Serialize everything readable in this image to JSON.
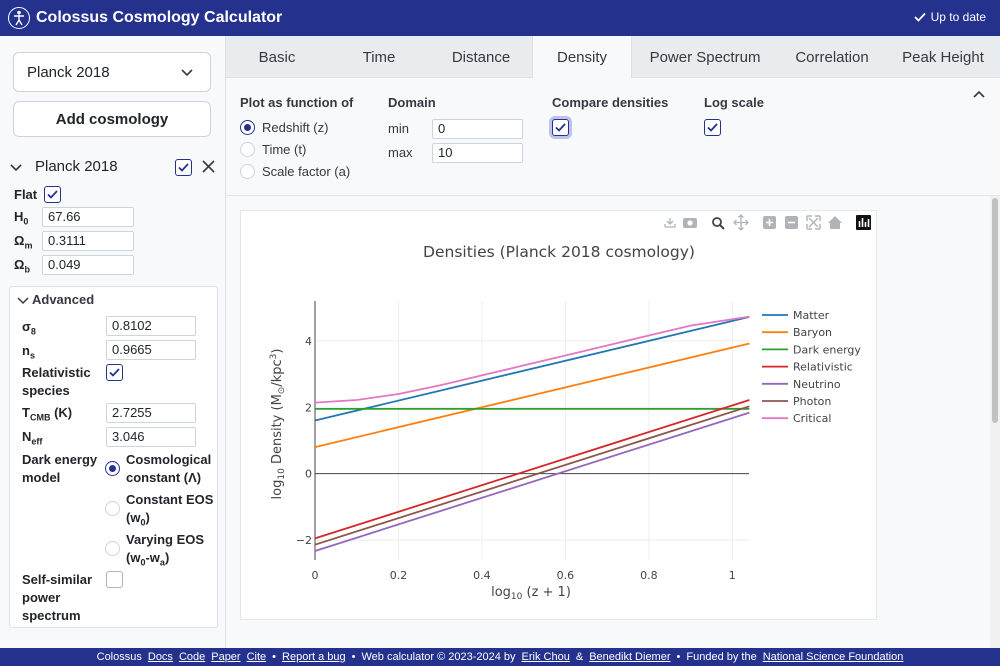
{
  "header": {
    "title": "Colossus Cosmology Calculator",
    "status": "Up to date"
  },
  "sidebar": {
    "select_value": "Planck 2018",
    "add_button": "Add cosmology",
    "cosmology": {
      "name": "Planck 2018",
      "flat_label": "Flat",
      "H0_label": "H",
      "H0_sub": "0",
      "H0": "67.66",
      "Om_label": "Ω",
      "Om_sub": "m",
      "Om": "0.3111",
      "Ob_label": "Ω",
      "Ob_sub": "b",
      "Ob": "0.049"
    },
    "advanced": {
      "title": "Advanced",
      "sigma8_label": "σ",
      "sigma8_sub": "8",
      "sigma8": "0.8102",
      "ns_label": "n",
      "ns_sub": "s",
      "ns": "0.9665",
      "relativistic_label_1": "Relativistic",
      "relativistic_label_2": "species",
      "tcmb_label": "T",
      "tcmb_sub": "CMB",
      "tcmb_unit": " (K)",
      "tcmb": "2.7255",
      "neff_label": "N",
      "neff_sub": "eff",
      "neff": "3.046",
      "de_label_1": "Dark energy",
      "de_label_2": "model",
      "de_opt1_1": "Cosmological",
      "de_opt1_2": "constant (Λ)",
      "de_opt2_1": "Constant EOS",
      "de_opt2_2a": "(w",
      "de_opt2_2sub": "0",
      "de_opt2_2b": ")",
      "de_opt3_1": "Varying EOS",
      "de_opt3_2a": "(w",
      "de_opt3_2sub1": "0",
      "de_opt3_2mid": "-w",
      "de_opt3_2sub2": "a",
      "de_opt3_2b": ")",
      "selfsim_1": "Self-similar",
      "selfsim_2": "power",
      "selfsim_3": "spectrum"
    }
  },
  "tabs": [
    "Basic",
    "Time",
    "Distance",
    "Density",
    "Power Spectrum",
    "Correlation",
    "Peak Height"
  ],
  "active_tab": "Density",
  "controls": {
    "plot_as_label": "Plot as function of",
    "options": [
      "Redshift (z)",
      "Time (t)",
      "Scale factor (a)"
    ],
    "domain_label": "Domain",
    "min_label": "min",
    "min_value": "0",
    "max_label": "max",
    "max_value": "10",
    "compare_label": "Compare densities",
    "log_label": "Log scale"
  },
  "chart_data": {
    "type": "line",
    "title": "Densities (Planck 2018 cosmology)",
    "xlabel": "log10 (z + 1)",
    "ylabel": "log10 Density (M⊙/kpc³)",
    "xlabel_parts": {
      "a": "log",
      "sub": "10",
      "b": " (z + 1)"
    },
    "ylabel_parts": {
      "a": "log",
      "sub": "10",
      "b": " Density (M",
      "sub2": "⊙",
      "c": "/kpc",
      "sup": "3",
      "d": ")"
    },
    "xlim": [
      0,
      1.04
    ],
    "ylim": [
      -2.6,
      5.2
    ],
    "xticks": [
      0,
      0.2,
      0.4,
      0.6,
      0.8,
      1
    ],
    "xtick_labels": [
      "0",
      "0.2",
      "0.4",
      "0.6",
      "0.8",
      "1"
    ],
    "yticks": [
      -2,
      0,
      2,
      4
    ],
    "ytick_labels": [
      "−2",
      "0",
      "2",
      "4"
    ],
    "grid": true,
    "legend_position": "right",
    "series": [
      {
        "name": "Matter",
        "color": "#1f77b4",
        "x": [
          0,
          1.041
        ],
        "y": [
          1.6,
          4.72
        ]
      },
      {
        "name": "Baryon",
        "color": "#ff7f0e",
        "x": [
          0,
          1.041
        ],
        "y": [
          0.8,
          3.92
        ]
      },
      {
        "name": "Dark energy",
        "color": "#2ca02c",
        "x": [
          0,
          1.041
        ],
        "y": [
          1.95,
          1.95
        ]
      },
      {
        "name": "Relativistic",
        "color": "#d62728",
        "x": [
          0,
          1.041
        ],
        "y": [
          -1.95,
          2.22
        ]
      },
      {
        "name": "Neutrino",
        "color": "#9467bd",
        "x": [
          0,
          1.041
        ],
        "y": [
          -2.33,
          1.84
        ]
      },
      {
        "name": "Photon",
        "color": "#8c564b",
        "x": [
          0,
          1.041
        ],
        "y": [
          -2.14,
          2.03
        ]
      },
      {
        "name": "Critical",
        "color": "#e377c2",
        "x": [
          0,
          0.1,
          0.2,
          0.3,
          0.4,
          0.5,
          0.6,
          0.7,
          0.8,
          0.9,
          1.041
        ],
        "y": [
          2.14,
          2.22,
          2.4,
          2.66,
          2.96,
          3.26,
          3.56,
          3.86,
          4.16,
          4.46,
          4.73
        ]
      }
    ]
  },
  "footer": {
    "items": [
      "Colossus",
      "Docs",
      "Code",
      "Paper",
      "Cite",
      "•",
      "Report a bug",
      "•",
      "Web calculator © 2023-2024 by",
      "Erik Chou",
      "&",
      "Benedikt Diemer",
      "•",
      "Funded by the",
      "National Science Foundation"
    ]
  }
}
